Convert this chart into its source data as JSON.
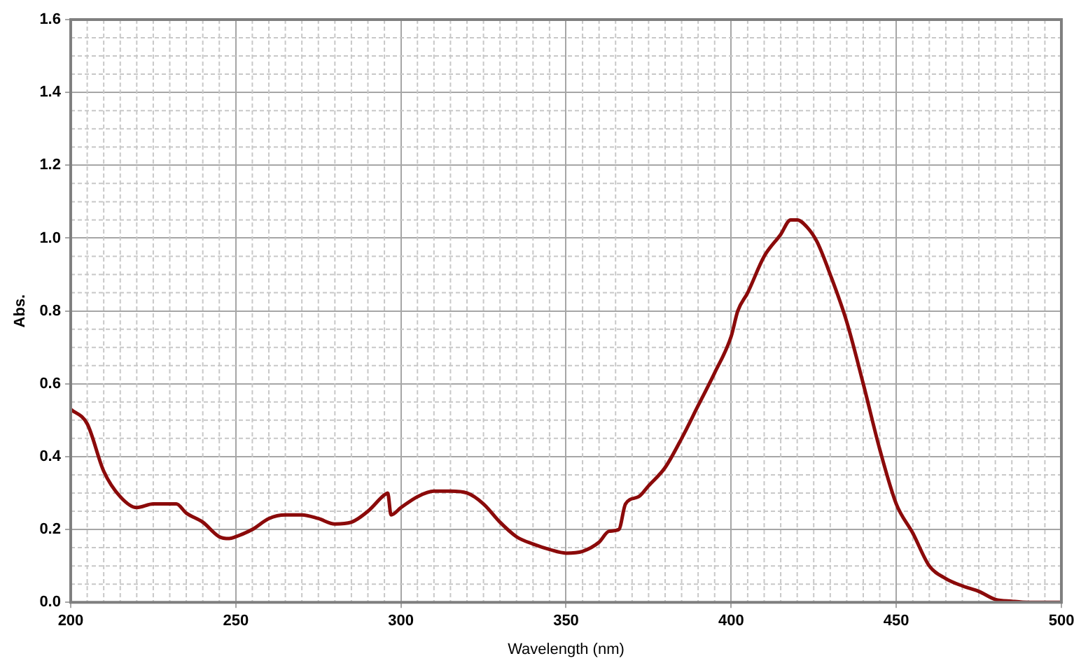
{
  "chart_data": {
    "type": "line",
    "xlabel": "Wavelength (nm)",
    "ylabel": "Abs.",
    "xlim": [
      200,
      500
    ],
    "xticks": [
      200,
      250,
      300,
      350,
      400,
      450,
      500
    ],
    "ylim": [
      0,
      1.6
    ],
    "yticks": [
      {
        "value": 0,
        "label": "0.0"
      },
      {
        "value": 0.2,
        "label": "0.2"
      },
      {
        "value": 0.4,
        "label": "0.4"
      },
      {
        "value": 0.6,
        "label": "0.6"
      },
      {
        "value": 0.8,
        "label": "0.8"
      },
      {
        "value": 1.0,
        "label": "1.0"
      },
      {
        "value": 1.2,
        "label": "1.2"
      },
      {
        "value": 1.4,
        "label": "1.4"
      },
      {
        "value": 1.6,
        "label": "1.6"
      }
    ],
    "grid": true,
    "legend": false,
    "marker": "none",
    "line_style": "solid",
    "x": [
      200,
      205,
      210,
      215,
      220,
      225,
      230,
      232,
      235,
      240,
      245,
      248,
      250,
      255,
      260,
      265,
      270,
      275,
      280,
      285,
      290,
      295,
      296,
      297,
      300,
      305,
      310,
      315,
      320,
      325,
      330,
      335,
      340,
      345,
      350,
      355,
      360,
      363,
      366,
      368,
      372,
      375,
      380,
      385,
      390,
      395,
      400,
      402,
      405,
      410,
      415,
      418,
      420,
      423,
      426,
      430,
      435,
      440,
      445,
      450,
      455,
      460,
      465,
      470,
      475,
      480,
      485,
      490,
      500
    ],
    "series": [
      {
        "color": "#8b0a0a",
        "values": [
          0.53,
          0.49,
          0.36,
          0.29,
          0.26,
          0.27,
          0.27,
          0.27,
          0.245,
          0.22,
          0.18,
          0.175,
          0.18,
          0.2,
          0.23,
          0.24,
          0.24,
          0.23,
          0.215,
          0.22,
          0.25,
          0.295,
          0.3,
          0.24,
          0.26,
          0.29,
          0.305,
          0.305,
          0.3,
          0.27,
          0.22,
          0.18,
          0.16,
          0.145,
          0.135,
          0.14,
          0.165,
          0.195,
          0.2,
          0.27,
          0.29,
          0.32,
          0.37,
          0.45,
          0.54,
          0.63,
          0.73,
          0.8,
          0.85,
          0.95,
          1.01,
          1.05,
          1.05,
          1.03,
          0.99,
          0.9,
          0.77,
          0.6,
          0.42,
          0.27,
          0.19,
          0.1,
          0.065,
          0.045,
          0.03,
          0.008,
          0.003,
          0,
          0
        ]
      }
    ]
  }
}
